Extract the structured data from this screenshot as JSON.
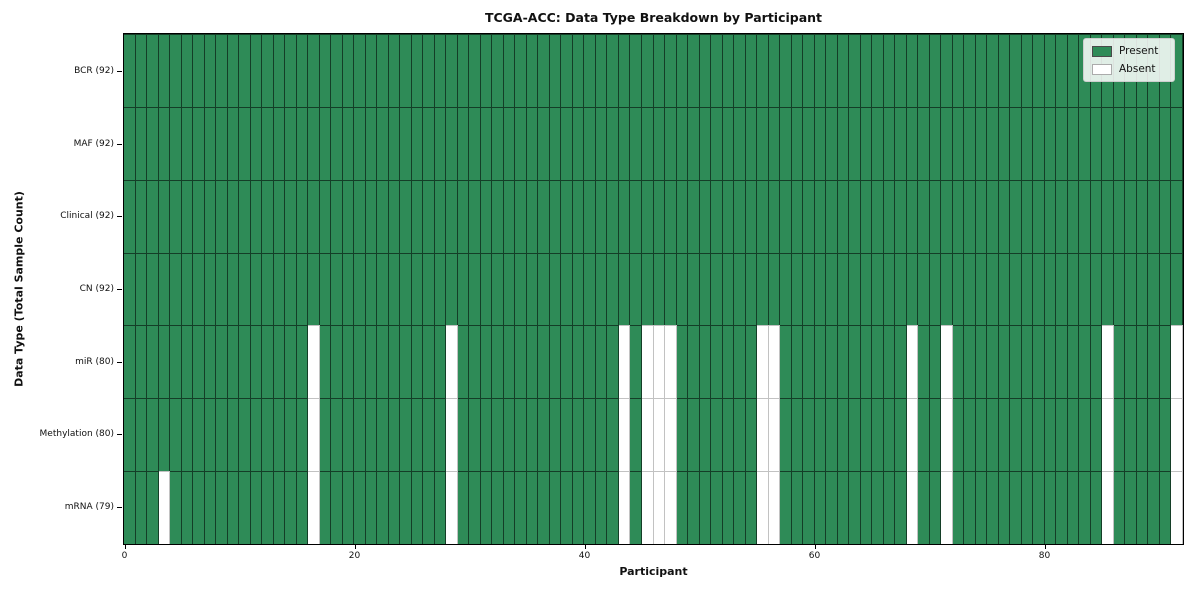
{
  "title": "TCGA-ACC: Data Type Breakdown by Participant",
  "xlabel": "Participant",
  "ylabel": "Data Type (Total Sample Count)",
  "legend": {
    "present_label": "Present",
    "absent_label": "Absent"
  },
  "colors": {
    "present": "#2e8b57",
    "absent": "#ffffff",
    "frame": "#000000"
  },
  "chart_data": {
    "type": "heatmap",
    "title": "TCGA-ACC: Data Type Breakdown by Participant",
    "xlabel": "Participant",
    "ylabel": "Data Type (Total Sample Count)",
    "n_participants": 92,
    "x_range": [
      0,
      92
    ],
    "x_ticks": [
      0,
      20,
      40,
      60,
      80
    ],
    "grid": false,
    "legend_position": "upper right",
    "legend": [
      {
        "label": "Present",
        "color": "#2e8b57"
      },
      {
        "label": "Absent",
        "color": "#ffffff"
      }
    ],
    "rows": [
      {
        "label": "BCR (92)",
        "data_type": "BCR",
        "present_count": 92,
        "absent_participants": []
      },
      {
        "label": "MAF (92)",
        "data_type": "MAF",
        "present_count": 92,
        "absent_participants": []
      },
      {
        "label": "Clinical (92)",
        "data_type": "Clinical",
        "present_count": 92,
        "absent_participants": []
      },
      {
        "label": "CN (92)",
        "data_type": "CN",
        "present_count": 92,
        "absent_participants": []
      },
      {
        "label": "miR (80)",
        "data_type": "miR",
        "present_count": 80,
        "absent_participants": [
          16,
          28,
          43,
          45,
          46,
          47,
          55,
          56,
          68,
          71,
          85,
          91
        ]
      },
      {
        "label": "Methylation (80)",
        "data_type": "Methylation",
        "present_count": 80,
        "absent_participants": [
          16,
          28,
          43,
          45,
          46,
          47,
          55,
          56,
          68,
          71,
          85,
          91
        ]
      },
      {
        "label": "mRNA (79)",
        "data_type": "mRNA",
        "present_count": 79,
        "absent_participants": [
          3,
          16,
          28,
          43,
          45,
          46,
          47,
          55,
          56,
          68,
          71,
          85,
          91
        ]
      }
    ]
  }
}
